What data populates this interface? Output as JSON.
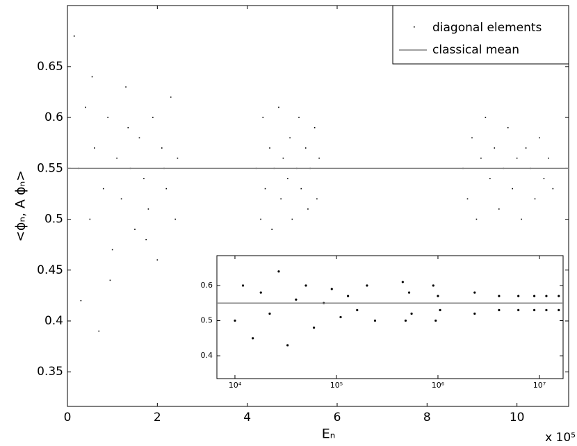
{
  "chart_data": [
    {
      "type": "scatter",
      "xlabel": "Eₙ",
      "ylabel": "<ϕₙ, A ϕₙ>",
      "x_multiplier": "x 10⁵",
      "xlim": [
        0,
        11.15
      ],
      "ylim": [
        0.316,
        0.71
      ],
      "xticks": [
        0,
        2,
        4,
        6,
        8,
        10
      ],
      "yticks": [
        0.35,
        0.4,
        0.45,
        0.5,
        0.55,
        0.6,
        0.65
      ],
      "legend": "upper right",
      "series": [
        {
          "name": "diagonal elements",
          "color": "#000000",
          "x": [
            0.15,
            0.3,
            0.4,
            0.5,
            0.6,
            0.7,
            0.8,
            0.9,
            1.0,
            1.1,
            1.2,
            1.3,
            1.4,
            1.5,
            1.6,
            1.7,
            1.8,
            1.9,
            2.0,
            2.1,
            2.2,
            2.3,
            2.4,
            0.25,
            0.55,
            0.95,
            1.35,
            1.75,
            2.15,
            2.45,
            4.2,
            4.3,
            4.35,
            4.4,
            4.5,
            4.55,
            4.6,
            4.7,
            4.75,
            4.8,
            4.9,
            4.95,
            5.0,
            5.1,
            5.15,
            5.2,
            5.3,
            5.35,
            5.4,
            5.5,
            5.55,
            5.6,
            8.8,
            8.9,
            9.0,
            9.1,
            9.2,
            9.3,
            9.4,
            9.5,
            9.6,
            9.7,
            9.8,
            9.9,
            10.0,
            10.1,
            10.2,
            10.3,
            10.4,
            10.5,
            10.6,
            10.7,
            10.8
          ],
          "values": [
            0.68,
            0.42,
            0.61,
            0.5,
            0.57,
            0.39,
            0.53,
            0.6,
            0.47,
            0.56,
            0.52,
            0.63,
            0.55,
            0.49,
            0.58,
            0.54,
            0.51,
            0.6,
            0.46,
            0.57,
            0.53,
            0.62,
            0.5,
            0.55,
            0.64,
            0.44,
            0.59,
            0.48,
            0.55,
            0.56,
            0.55,
            0.5,
            0.6,
            0.53,
            0.57,
            0.49,
            0.55,
            0.61,
            0.52,
            0.56,
            0.54,
            0.58,
            0.5,
            0.55,
            0.6,
            0.53,
            0.57,
            0.51,
            0.55,
            0.59,
            0.52,
            0.56,
            0.55,
            0.52,
            0.58,
            0.5,
            0.56,
            0.6,
            0.54,
            0.57,
            0.51,
            0.55,
            0.59,
            0.53,
            0.56,
            0.5,
            0.57,
            0.55,
            0.52,
            0.58,
            0.54,
            0.56,
            0.53
          ]
        }
      ],
      "hline": {
        "name": "classical mean",
        "value": 0.55,
        "color": "#808080"
      }
    },
    {
      "type": "scatter",
      "xscale": "log",
      "xlim": [
        6640,
        17100000
      ],
      "ylim": [
        0.335,
        0.685
      ],
      "xticks": [
        {
          "value": 10000,
          "label": "10⁴"
        },
        {
          "value": 100000,
          "label": "10⁵"
        },
        {
          "value": 1000000,
          "label": "10⁶"
        },
        {
          "value": 10000000,
          "label": "10⁷"
        }
      ],
      "yticks": [
        0.4,
        0.5,
        0.6
      ],
      "series": [
        {
          "color": "#000000",
          "x": [
            10000,
            12000,
            15000,
            18000,
            22000,
            27000,
            33000,
            40000,
            50000,
            60000,
            75000,
            90000,
            110000,
            130000,
            160000,
            200000,
            240000,
            450000,
            480000,
            520000,
            550000,
            900000,
            950000,
            1000000,
            1050000,
            2300000,
            2300000,
            4000000,
            4000000,
            6200000,
            6200000,
            8900000,
            8900000,
            11700000,
            11700000,
            15500000,
            15500000
          ],
          "values": [
            0.5,
            0.6,
            0.45,
            0.58,
            0.52,
            0.64,
            0.43,
            0.56,
            0.6,
            0.48,
            0.55,
            0.59,
            0.51,
            0.57,
            0.53,
            0.6,
            0.5,
            0.61,
            0.5,
            0.58,
            0.52,
            0.6,
            0.5,
            0.57,
            0.53,
            0.58,
            0.52,
            0.57,
            0.53,
            0.57,
            0.53,
            0.57,
            0.53,
            0.57,
            0.53,
            0.57,
            0.53
          ]
        }
      ],
      "hline": {
        "value": 0.55,
        "color": "#808080"
      }
    }
  ]
}
